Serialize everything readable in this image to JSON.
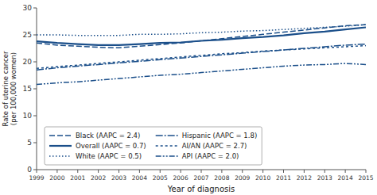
{
  "chart_data": {
    "type": "line",
    "x": [
      1999,
      2000,
      2001,
      2002,
      2003,
      2004,
      2005,
      2006,
      2007,
      2008,
      2009,
      2010,
      2011,
      2012,
      2013,
      2014,
      2015
    ],
    "series": [
      {
        "name": "Black (AAPC = 2.4)",
        "color": "#1B4F8A",
        "line_style": "dashed",
        "values": [
          23.5,
          23.1,
          22.9,
          22.7,
          22.6,
          22.9,
          23.2,
          23.5,
          23.9,
          24.3,
          24.7,
          25.1,
          25.5,
          25.9,
          26.3,
          26.7,
          26.9
        ]
      },
      {
        "name": "Overall (AAPC = 0.7)",
        "color": "#1B4F8A",
        "line_style": "solid",
        "values": [
          23.8,
          23.5,
          23.3,
          23.1,
          23.1,
          23.3,
          23.5,
          23.6,
          23.9,
          24.1,
          24.4,
          24.6,
          24.9,
          25.3,
          25.6,
          26.0,
          26.4
        ]
      },
      {
        "name": "White (AAPC = 0.5)",
        "color": "#1B4F8A",
        "line_style": "dotted",
        "values": [
          25.0,
          25.0,
          24.9,
          24.9,
          24.9,
          25.1,
          25.1,
          25.2,
          25.4,
          25.5,
          25.7,
          25.8,
          26.0,
          26.2,
          26.4,
          26.6,
          26.9
        ]
      },
      {
        "name": "Hispanic (AAPC = 1.8)",
        "color": "#1B4F8A",
        "line_style": "dashdot",
        "values": [
          18.5,
          18.9,
          19.2,
          19.5,
          19.8,
          20.1,
          20.4,
          20.7,
          21.0,
          21.3,
          21.6,
          21.9,
          22.2,
          22.5,
          22.8,
          23.1,
          23.3
        ]
      },
      {
        "name": "AI/AN (AAPC = 2.7)",
        "color": "#1B4F8A",
        "line_style": "shortdash",
        "values": [
          18.8,
          19.1,
          19.4,
          19.7,
          20.0,
          20.3,
          20.6,
          20.9,
          21.2,
          21.5,
          21.7,
          22.0,
          22.2,
          22.4,
          22.6,
          22.8,
          23.0
        ]
      },
      {
        "name": "API (AAPC = 2.0)",
        "color": "#1B4F8A",
        "line_style": "dashdotdot",
        "values": [
          15.8,
          16.1,
          16.3,
          16.6,
          16.9,
          17.2,
          17.5,
          17.7,
          18.0,
          18.3,
          18.6,
          18.9,
          19.2,
          19.4,
          19.5,
          19.7,
          19.5
        ]
      }
    ],
    "xlim": [
      1999,
      2015
    ],
    "xticks": [
      1999,
      2000,
      2001,
      2002,
      2003,
      2004,
      2005,
      2006,
      2007,
      2008,
      2009,
      2010,
      2011,
      2012,
      2013,
      2014,
      2015
    ],
    "ylim": [
      0,
      30
    ],
    "yticks": [
      0,
      5,
      10,
      15,
      20,
      25,
      30
    ],
    "xlabel": "Year of diagnosis",
    "ylabel": "Rate of uterine cancer\n(per 100,000 women)",
    "legend": "lower left",
    "grid": false
  }
}
